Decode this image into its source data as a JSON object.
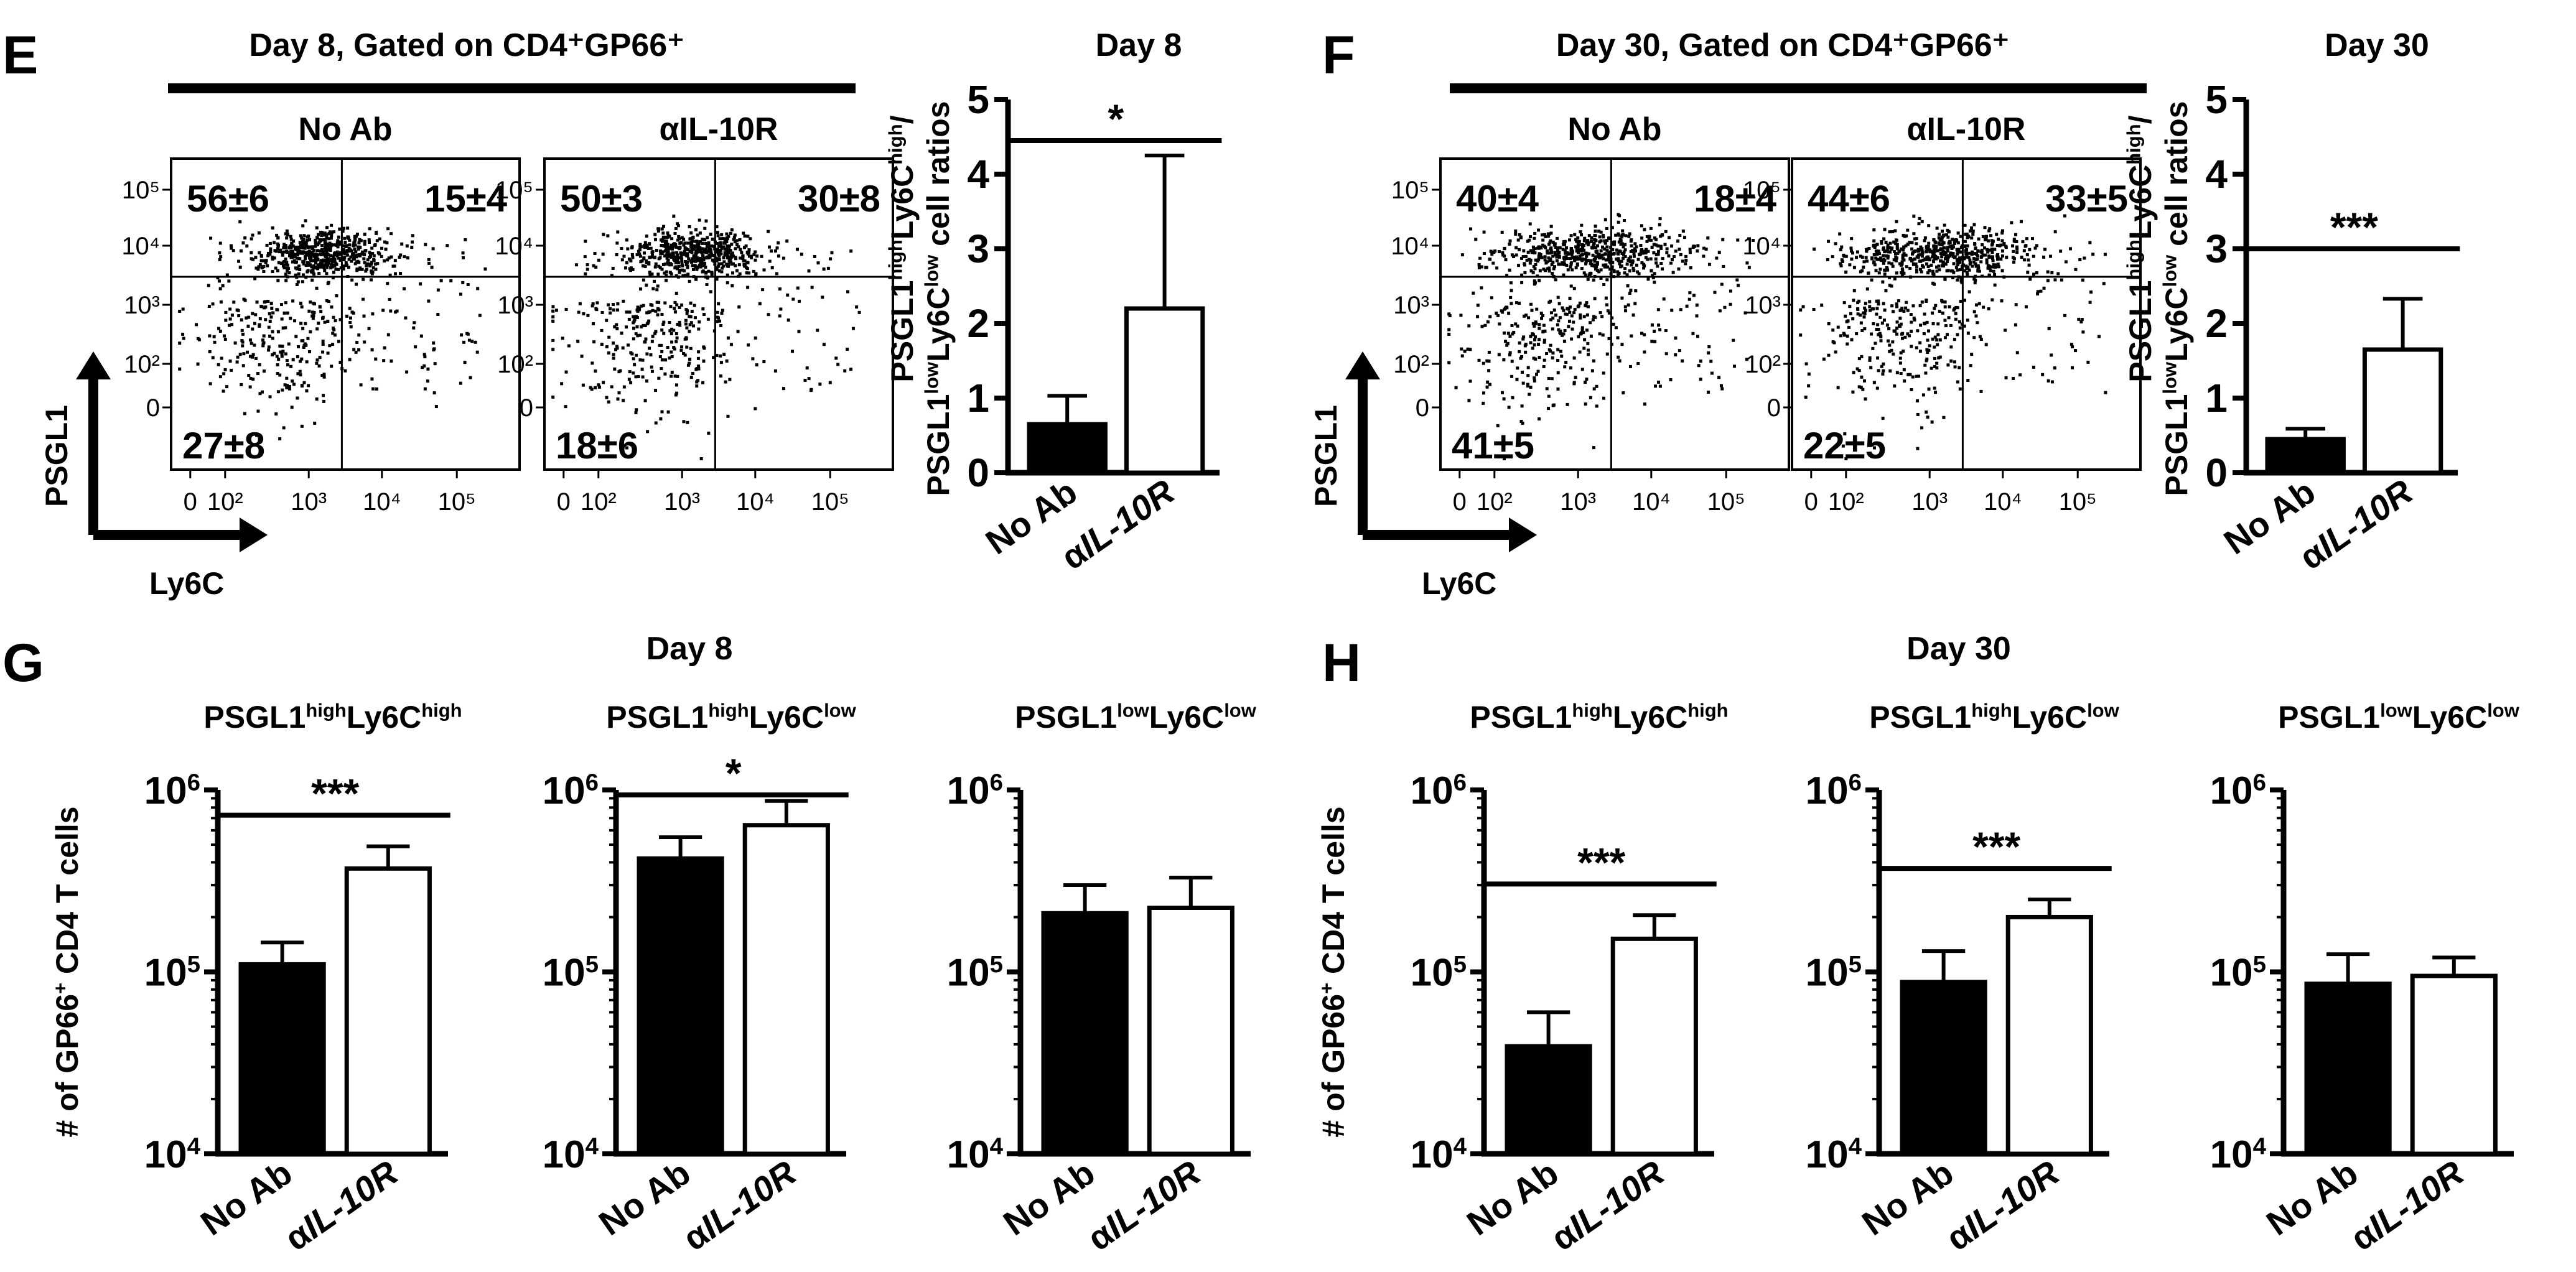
{
  "panels": {
    "E": {
      "letter": "E",
      "header": "Day 8, Gated on CD4⁺GP66⁺",
      "y_axis_arrow": "PSGL1",
      "x_axis_arrow": "Ly6C",
      "plots": [
        {
          "title": "No Ab",
          "ul": "56±6",
          "ur": "15±4",
          "ll": "27±8"
        },
        {
          "title": "αIL-10R",
          "ul": "50±3",
          "ur": "30±8",
          "ll": "18±6"
        }
      ]
    },
    "F": {
      "letter": "F",
      "header": "Day 30, Gated on CD4⁺GP66⁺",
      "y_axis_arrow": "PSGL1",
      "x_axis_arrow": "Ly6C",
      "plots": [
        {
          "title": "No Ab",
          "ul": "40±4",
          "ur": "18±4",
          "ll": "41±5"
        },
        {
          "title": "αIL-10R",
          "ul": "44±6",
          "ur": "33±5",
          "ll": "22±5"
        }
      ]
    },
    "G": {
      "letter": "G",
      "header": "Day 8"
    },
    "H": {
      "letter": "H",
      "header": "Day 30"
    }
  },
  "flow_axis_ticks": {
    "x": [
      "0",
      "10²",
      "10³",
      "10⁴",
      "10⁵"
    ],
    "y": [
      "10⁵",
      "10⁴",
      "10³",
      "10²",
      "0"
    ]
  },
  "chart_data": [
    {
      "id": "ratio-day8",
      "type": "bar",
      "title": "Day 8",
      "ylabel": "PSGL1highLy6Chigh/PSGL1lowLy6Clow cell ratios",
      "categories": [
        "No Ab",
        "αIL-10R"
      ],
      "values": [
        0.65,
        2.2
      ],
      "errors": [
        0.38,
        2.05
      ],
      "ylim": [
        0,
        5
      ],
      "yticks": [
        "0",
        "1",
        "2",
        "3",
        "4",
        "5"
      ],
      "significance": "*"
    },
    {
      "id": "ratio-day30",
      "type": "bar",
      "title": "Day 30",
      "ylabel": "PSGL1highLy6Chigh/PSGL1lowLy6Clow cell ratios",
      "categories": [
        "No Ab",
        "αIL-10R"
      ],
      "values": [
        0.45,
        1.65
      ],
      "errors": [
        0.14,
        0.68
      ],
      "ylim": [
        0,
        5
      ],
      "yticks": [
        "0",
        "1",
        "2",
        "3",
        "4",
        "5"
      ],
      "significance": "***"
    },
    {
      "id": "g-hh",
      "type": "bar",
      "title": "PSGL1highLy6Chigh",
      "scale": "log",
      "ylabel": "# of GP66⁺ CD4 T cells",
      "categories": [
        "No Ab",
        "αIL-10R"
      ],
      "values": [
        110000,
        370000
      ],
      "error_tops": [
        145000,
        490000
      ],
      "ylim": [
        10000,
        1000000
      ],
      "yticks": [
        "10⁴",
        "10⁵",
        "10⁶"
      ],
      "significance": "***"
    },
    {
      "id": "g-hl",
      "type": "bar",
      "title": "PSGL1highLy6Clow",
      "scale": "log",
      "categories": [
        "No Ab",
        "αIL-10R"
      ],
      "values": [
        420000,
        640000
      ],
      "error_tops": [
        550000,
        870000
      ],
      "ylim": [
        10000,
        1000000
      ],
      "yticks": [
        "10⁴",
        "10⁵",
        "10⁶"
      ],
      "significance": "*"
    },
    {
      "id": "g-ll",
      "type": "bar",
      "title": "PSGL1lowLy6Clow",
      "scale": "log",
      "categories": [
        "No Ab",
        "αIL-10R"
      ],
      "values": [
        210000,
        225000
      ],
      "error_tops": [
        300000,
        330000
      ],
      "ylim": [
        10000,
        1000000
      ],
      "yticks": [
        "10⁴",
        "10⁵",
        "10⁶"
      ],
      "significance": ""
    },
    {
      "id": "h-hh",
      "type": "bar",
      "title": "PSGL1highLy6Chigh",
      "scale": "log",
      "ylabel": "# of GP66⁺ CD4 T cells",
      "categories": [
        "No Ab",
        "αIL-10R"
      ],
      "values": [
        39000,
        152000
      ],
      "error_tops": [
        60000,
        205000
      ],
      "ylim": [
        10000,
        1000000
      ],
      "yticks": [
        "10⁴",
        "10⁵",
        "10⁶"
      ],
      "significance": "***"
    },
    {
      "id": "h-hl",
      "type": "bar",
      "title": "PSGL1highLy6Clow",
      "scale": "log",
      "categories": [
        "No Ab",
        "αIL-10R"
      ],
      "values": [
        88000,
        200000
      ],
      "error_tops": [
        130000,
        250000
      ],
      "ylim": [
        10000,
        1000000
      ],
      "yticks": [
        "10⁴",
        "10⁵",
        "10⁶"
      ],
      "significance": "***"
    },
    {
      "id": "h-ll",
      "type": "bar",
      "title": "PSGL1lowLy6Clow",
      "scale": "log",
      "categories": [
        "No Ab",
        "αIL-10R"
      ],
      "values": [
        86000,
        95000
      ],
      "error_tops": [
        125000,
        120000
      ],
      "ylim": [
        10000,
        1000000
      ],
      "yticks": [
        "10⁴",
        "10⁵",
        "10⁶"
      ],
      "significance": ""
    }
  ],
  "colors": {
    "no_ab_fill": "#000000",
    "il10r_fill": "#ffffff",
    "stroke": "#000000"
  }
}
